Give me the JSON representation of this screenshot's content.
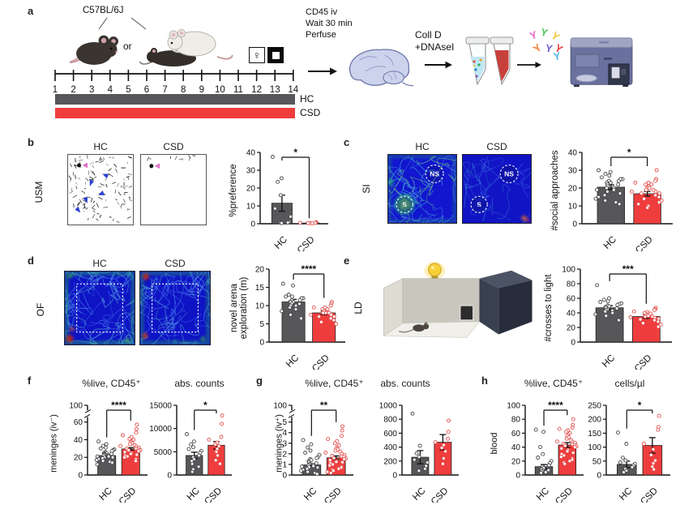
{
  "colors": {
    "hc": "#57575a",
    "csd": "#ef3d3d",
    "hc_dot_stroke": "#47474b",
    "csd_dot_stroke": "#e35050"
  },
  "panels": {
    "a": {
      "label": "a",
      "strain": "C57BL/6J",
      "or": "or",
      "days": [
        "1",
        "2",
        "3",
        "4",
        "5",
        "6",
        "7",
        "8",
        "9",
        "10",
        "11",
        "12",
        "13",
        "14"
      ],
      "female_symbol": "♀",
      "injection_lines": [
        "CD45 iv",
        "Wait 30 min",
        "Perfuse"
      ],
      "digest_lines": [
        "Coll D",
        "+DNAseI"
      ],
      "legend": [
        {
          "label": "HC",
          "color": "#57575a"
        },
        {
          "label": "CSD",
          "color": "#ef3d3d"
        }
      ]
    },
    "b": {
      "label": "b",
      "test": "USM",
      "col1": "HC",
      "col2": "CSD"
    },
    "c": {
      "label": "c",
      "test": "SI",
      "col1": "HC",
      "col2": "CSD",
      "zone_social": "S",
      "zone_nonsocial": "NS"
    },
    "d": {
      "label": "d",
      "test": "OF",
      "col1": "HC",
      "col2": "CSD"
    },
    "e": {
      "label": "e",
      "test": "LD"
    },
    "f": {
      "label": "f",
      "row_label": "meninges (iv⁻)",
      "title1": "%live, CD45⁺",
      "title2": "abs. counts"
    },
    "g": {
      "label": "g",
      "row_label": "meninges (iv⁺)",
      "title1": "%live, CD45⁺",
      "title2": "abs. counts"
    },
    "h": {
      "label": "h",
      "row_label": "blood",
      "title1": "%live, CD45⁺",
      "title2": "cells/µl"
    }
  },
  "chart_data": [
    {
      "id": "b_pref",
      "type": "bar",
      "title": "",
      "ylabel": "%preference",
      "categories": [
        "HC",
        "CSD"
      ],
      "values": [
        11.5,
        0.4
      ],
      "errors": [
        4.5,
        0.3
      ],
      "yticks": [
        0,
        10,
        20,
        30,
        40
      ],
      "ymax": 40,
      "sig": "*",
      "ml": 40,
      "points": [
        [
          37.5,
          25.5,
          23.5,
          16,
          8.5,
          4,
          1,
          0.7,
          0.5,
          0.3
        ],
        [
          0.8,
          0.6,
          0.5,
          0.5,
          0.4,
          0.3,
          0.2
        ]
      ]
    },
    {
      "id": "c_social",
      "type": "bar",
      "title": "",
      "ylabel": "#social approaches",
      "categories": [
        "HC",
        "CSD"
      ],
      "values": [
        20.5,
        16.8
      ],
      "errors": [
        1.3,
        1.3
      ],
      "yticks": [
        0,
        10,
        20,
        30,
        40
      ],
      "ymax": 40,
      "sig": "*",
      "ml": 40,
      "points": [
        [
          30,
          29,
          28,
          27,
          26,
          25,
          25,
          24,
          24,
          23,
          23,
          22,
          22,
          21,
          21,
          20,
          20,
          19,
          19,
          18,
          17,
          16,
          15,
          14,
          13,
          12,
          11
        ],
        [
          30,
          25,
          24,
          23,
          23,
          22,
          22,
          21,
          20,
          20,
          19,
          19,
          18,
          18,
          17,
          17,
          16,
          15,
          14,
          13,
          12,
          11,
          10,
          9
        ]
      ]
    },
    {
      "id": "d_explore",
      "type": "bar",
      "title": "",
      "ylabel": [
        "novel arena",
        "exploration (m)"
      ],
      "categories": [
        "HC",
        "CSD"
      ],
      "values": [
        11,
        8
      ],
      "errors": [
        0.7,
        0.5
      ],
      "yticks": [
        0,
        5,
        10,
        15,
        20
      ],
      "ymax": 20,
      "sig": "****",
      "ml": 50,
      "points": [
        [
          16,
          15.5,
          13,
          12.5,
          12.5,
          12,
          12,
          11.5,
          11.5,
          11,
          11,
          11,
          10.5,
          10.5,
          10,
          10,
          9.5,
          9,
          8.5,
          7.5,
          6.5
        ],
        [
          11,
          10.5,
          10,
          9.5,
          9.5,
          9,
          9,
          8.5,
          8.5,
          8,
          8,
          8,
          7.5,
          7.5,
          7,
          7,
          6.5,
          6,
          5.5,
          5
        ]
      ]
    },
    {
      "id": "e_crosses",
      "type": "bar",
      "title": "",
      "ylabel": "#crosses to light",
      "categories": [
        "HC",
        "CSD"
      ],
      "values": [
        47,
        35
      ],
      "errors": [
        3,
        2.5
      ],
      "yticks": [
        0,
        20,
        40,
        60,
        80,
        100
      ],
      "ymax": 100,
      "sig": "***",
      "ml": 46,
      "points": [
        [
          78,
          60,
          58,
          56,
          55,
          53,
          52,
          51,
          50,
          49,
          48,
          47,
          46,
          45,
          44,
          43,
          42,
          40,
          38,
          36,
          30
        ],
        [
          47,
          45,
          44,
          42,
          41,
          40,
          39,
          38,
          37,
          36,
          35,
          35,
          34,
          33,
          32,
          31,
          30,
          28,
          26,
          24,
          21
        ]
      ]
    },
    {
      "id": "f_pct",
      "type": "bar",
      "title": "%live, CD45⁺",
      "ylabel": null,
      "categories": [
        "HC",
        "CSD"
      ],
      "values": [
        22,
        29.5
      ],
      "errors": [
        1.2,
        1.5
      ],
      "yticks": [
        0,
        20,
        40,
        60
      ],
      "ymax": 60,
      "break_top": "100",
      "break_frac": 0.76,
      "sig": "****",
      "ml": 30,
      "points": [
        [
          38,
          35,
          33,
          31,
          30,
          29,
          28,
          27,
          26,
          25,
          25,
          24,
          24,
          23,
          23,
          22,
          22,
          21,
          21,
          20,
          20,
          19,
          18,
          17,
          16,
          15,
          14,
          12
        ],
        [
          57,
          52,
          48,
          45,
          43,
          41,
          40,
          38,
          37,
          36,
          35,
          34,
          33,
          32,
          31,
          30,
          30,
          29,
          28,
          28,
          27,
          26,
          25,
          24,
          23,
          22,
          21,
          20,
          18,
          16
        ]
      ]
    },
    {
      "id": "f_abs",
      "type": "bar",
      "title": "abs. counts",
      "ylabel": null,
      "categories": [
        "HC",
        "CSD"
      ],
      "values": [
        4200,
        6400
      ],
      "errors": [
        700,
        800
      ],
      "yticks": [
        0,
        5000,
        10000,
        15000
      ],
      "ymax": 15000,
      "sig": "*",
      "ml": 38,
      "points": [
        [
          8800,
          7200,
          6600,
          6000,
          5600,
          5200,
          4800,
          4200,
          3800,
          3400,
          3000,
          2400,
          1800,
          1200,
          700
        ],
        [
          12800,
          11000,
          8200,
          7600,
          7000,
          6600,
          6200,
          5600,
          5000,
          4200,
          3200,
          2400
        ]
      ]
    },
    {
      "id": "g_pct",
      "type": "bar",
      "title": "%live, CD45⁺",
      "ylabel": null,
      "categories": [
        "HC",
        "CSD"
      ],
      "values": [
        0.95,
        1.62
      ],
      "errors": [
        0.12,
        0.18
      ],
      "yticks": [
        0,
        1,
        2,
        3,
        4,
        5
      ],
      "ymax": 5,
      "break_top": "100",
      "break_frac": 0.76,
      "sig": "**",
      "ml": 30,
      "points": [
        [
          3.3,
          2.9,
          2.6,
          2.3,
          2.1,
          1.9,
          1.7,
          1.6,
          1.5,
          1.4,
          1.3,
          1.2,
          1.1,
          1.05,
          1.0,
          0.95,
          0.9,
          0.85,
          0.8,
          0.75,
          0.7,
          0.6,
          0.5,
          0.4,
          0.3,
          0.2,
          0.1
        ],
        [
          4.6,
          4.2,
          3.7,
          3.4,
          3.2,
          3.0,
          2.8,
          2.6,
          2.5,
          2.4,
          2.3,
          2.2,
          2.1,
          2.0,
          1.9,
          1.8,
          1.75,
          1.7,
          1.6,
          1.55,
          1.5,
          1.4,
          1.3,
          1.25,
          1.2,
          1.1,
          1.0,
          0.9,
          0.8,
          0.7,
          0.6,
          0.5,
          0.4,
          0.3,
          0.2
        ]
      ]
    },
    {
      "id": "g_abs",
      "type": "bar",
      "title": "abs. counts",
      "ylabel": null,
      "categories": [
        "HC",
        "CSD"
      ],
      "values": [
        255,
        470
      ],
      "errors": [
        95,
        110
      ],
      "yticks": [
        0,
        200,
        400,
        600,
        800,
        1000
      ],
      "ymax": 1000,
      "sig": "",
      "ml": 36,
      "points": [
        [
          880,
          420,
          310,
          260,
          220,
          180,
          130,
          90,
          60
        ],
        [
          780,
          620,
          520,
          470,
          430,
          390,
          340,
          240,
          160
        ]
      ]
    },
    {
      "id": "h_pct",
      "type": "bar",
      "title": "%live, CD45⁺",
      "ylabel": null,
      "categories": [
        "HC",
        "CSD"
      ],
      "values": [
        12,
        43
      ],
      "errors": [
        3,
        3.5
      ],
      "yticks": [
        0,
        20,
        40,
        60,
        80,
        100
      ],
      "ymax": 100,
      "sig": "****",
      "ml": 32,
      "points": [
        [
          65,
          62,
          40,
          30,
          25,
          20,
          17,
          14,
          12,
          10,
          9,
          8,
          7,
          6,
          5,
          4,
          3
        ],
        [
          80,
          72,
          68,
          66,
          64,
          62,
          60,
          58,
          56,
          54,
          52,
          50,
          48,
          47,
          46,
          45,
          44,
          43,
          42,
          41,
          40,
          38,
          36,
          34,
          32,
          30,
          28,
          26,
          24,
          22,
          20,
          18,
          16
        ]
      ]
    },
    {
      "id": "h_cells",
      "type": "bar",
      "title": "cells/µl",
      "ylabel": null,
      "categories": [
        "HC",
        "CSD"
      ],
      "values": [
        38,
        106
      ],
      "errors": [
        12,
        28
      ],
      "yticks": [
        0,
        50,
        100,
        150,
        200,
        250
      ],
      "ymax": 250,
      "sig": "*",
      "ml": 30,
      "points": [
        [
          152,
          112,
          62,
          52,
          45,
          40,
          34,
          28,
          22,
          16,
          10
        ],
        [
          212,
          172,
          162,
          112,
          92,
          72,
          52,
          42,
          30,
          20
        ]
      ]
    }
  ]
}
